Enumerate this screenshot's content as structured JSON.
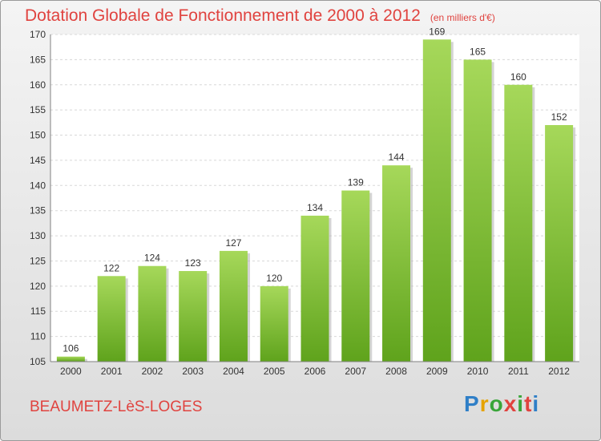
{
  "header": {
    "title": "Dotation Globale de Fonctionnement de 2000 à 2012",
    "unit": "(en milliers d'€)"
  },
  "footer": {
    "city": "BEAUMETZ-LèS-LOGES",
    "brand": [
      "P",
      "r",
      "o",
      "x",
      "i",
      "t",
      "i"
    ]
  },
  "colors": {
    "title": "#e0433f",
    "bar_top": "#a6d85a",
    "bar_bottom": "#5fa31c"
  },
  "chart_data": {
    "type": "bar",
    "title": "Dotation Globale de Fonctionnement de 2000 à 2012",
    "subtitle": "(en milliers d'€)",
    "xlabel": "",
    "ylabel": "",
    "categories": [
      "2000",
      "2001",
      "2002",
      "2003",
      "2004",
      "2005",
      "2006",
      "2007",
      "2008",
      "2009",
      "2010",
      "2011",
      "2012"
    ],
    "values": [
      106,
      122,
      124,
      123,
      127,
      120,
      134,
      139,
      144,
      169,
      165,
      160,
      152
    ],
    "ylim": [
      105,
      170
    ],
    "yticks": [
      105,
      110,
      115,
      120,
      125,
      130,
      135,
      140,
      145,
      150,
      155,
      160,
      165,
      170
    ],
    "grid": true,
    "legend": "none"
  }
}
